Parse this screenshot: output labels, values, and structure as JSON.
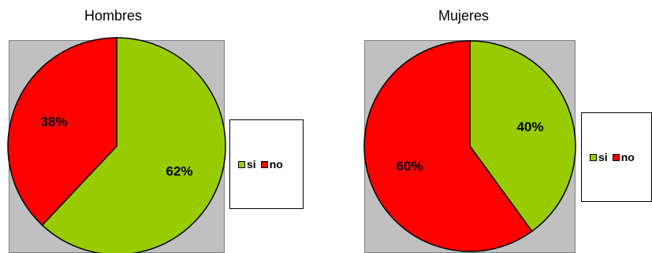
{
  "chart_data": [
    {
      "type": "pie",
      "title": "Hombres",
      "slices": [
        {
          "name": "si",
          "value": 62,
          "label": "62%",
          "color": "#99cc00"
        },
        {
          "name": "no",
          "value": 38,
          "label": "38%",
          "color": "#ff0000"
        }
      ],
      "legend": [
        "si",
        "no"
      ],
      "legend_position": "right"
    },
    {
      "type": "pie",
      "title": "Mujeres",
      "slices": [
        {
          "name": "si",
          "value": 40,
          "label": "40%",
          "color": "#99cc00"
        },
        {
          "name": "no",
          "value": 60,
          "label": "60%",
          "color": "#ff0000"
        }
      ],
      "legend": [
        "si",
        "no"
      ],
      "legend_position": "right"
    }
  ],
  "colors": {
    "plot_background": "#c0c0c0",
    "si": "#99cc00",
    "no": "#ff0000"
  }
}
